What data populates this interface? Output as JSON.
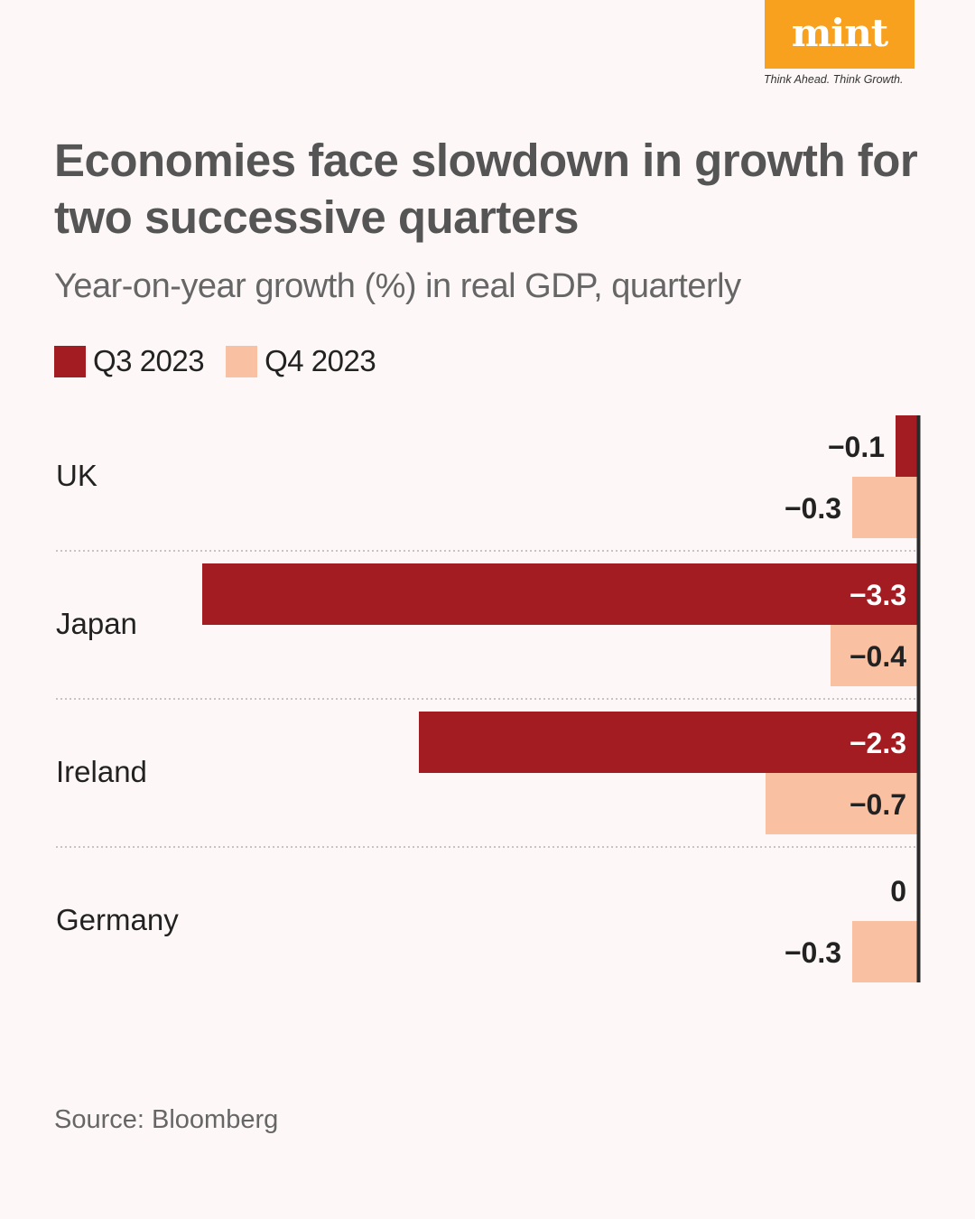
{
  "brand": {
    "logo": "mint",
    "tagline": "Think Ahead. Think Growth."
  },
  "title": "Economies face slowdown in growth for two successive quarters",
  "subtitle": "Year-on-year growth (%) in real GDP, quarterly",
  "source": "Source: Bloomberg",
  "colors": {
    "q3": "#a31c22",
    "q4": "#f9c0a2",
    "axis": "#2a2a2a",
    "background": "#fdf8f7"
  },
  "chart_data": {
    "type": "bar",
    "orientation": "horizontal",
    "title": "Economies face slowdown in growth for two successive quarters",
    "subtitle": "Year-on-year growth (%) in real GDP, quarterly",
    "categories": [
      "UK",
      "Japan",
      "Ireland",
      "Germany"
    ],
    "series": [
      {
        "name": "Q3 2023",
        "values": [
          -0.1,
          -3.3,
          -2.3,
          0
        ],
        "labels": [
          "−0.1",
          "−3.3",
          "−2.3",
          "0"
        ]
      },
      {
        "name": "Q4 2023",
        "values": [
          -0.3,
          -0.4,
          -0.7,
          -0.3
        ],
        "labels": [
          "−0.3",
          "−0.4",
          "−0.7",
          "−0.3"
        ]
      }
    ],
    "xlim": [
      -3.3,
      0
    ],
    "legend": "top-left",
    "grid": false,
    "source": "Bloomberg"
  }
}
